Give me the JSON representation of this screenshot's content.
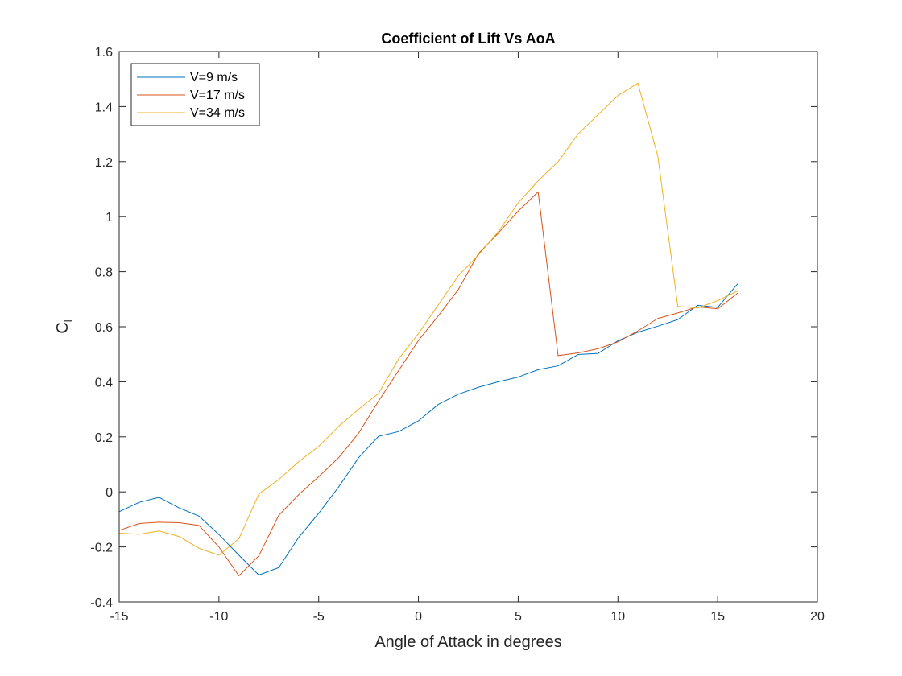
{
  "chart_data": {
    "type": "line",
    "title": "Coefficient of Lift Vs AoA",
    "xlabel": "Angle of Attack in degrees",
    "ylabel": {
      "main": "C",
      "subscript": "l"
    },
    "xlim": [
      -15,
      20
    ],
    "ylim": [
      -0.4,
      1.6
    ],
    "xticks": [
      -15,
      -10,
      -5,
      0,
      5,
      10,
      15,
      20
    ],
    "xtick_labels": [
      "-15",
      "-10",
      "-5",
      "0",
      "5",
      "10",
      "15",
      "20"
    ],
    "yticks": [
      -0.4,
      -0.2,
      0,
      0.2,
      0.4,
      0.6,
      0.8,
      1,
      1.2,
      1.4,
      1.6
    ],
    "ytick_labels": [
      "-0.4",
      "-0.2",
      "0",
      "0.2",
      "0.4",
      "0.6",
      "0.8",
      "1",
      "1.2",
      "1.4",
      "1.6"
    ],
    "grid": false,
    "legend_position": "top-left",
    "x": [
      -15,
      -14,
      -13,
      -12,
      -11,
      -10,
      -9,
      -8,
      -7,
      -6,
      -5,
      -4,
      -3,
      -2,
      -1,
      0,
      1,
      2,
      3,
      4,
      5,
      6,
      7,
      8,
      9,
      10,
      11,
      12,
      13,
      14,
      15,
      16
    ],
    "series": [
      {
        "name": "V=9 m/s",
        "color": "#0072BD",
        "values": [
          -0.072,
          -0.038,
          -0.02,
          -0.058,
          -0.088,
          -0.155,
          -0.23,
          -0.302,
          -0.275,
          -0.165,
          -0.078,
          0.018,
          0.124,
          0.202,
          0.219,
          0.258,
          0.318,
          0.355,
          0.38,
          0.4,
          0.417,
          0.444,
          0.458,
          0.499,
          0.503,
          0.549,
          0.58,
          0.602,
          0.626,
          0.678,
          0.67,
          0.756
        ]
      },
      {
        "name": "V=17 m/s",
        "color": "#D95319",
        "values": [
          -0.14,
          -0.115,
          -0.11,
          -0.112,
          -0.122,
          -0.2,
          -0.305,
          -0.232,
          -0.085,
          -0.01,
          0.055,
          0.124,
          0.213,
          0.33,
          0.44,
          0.55,
          0.64,
          0.735,
          0.865,
          0.94,
          1.02,
          1.09,
          0.495,
          0.505,
          0.52,
          0.545,
          0.585,
          0.63,
          0.65,
          0.672,
          0.665,
          0.722
        ]
      },
      {
        "name": "V=34 m/s",
        "color": "#EDB120",
        "values": [
          -0.15,
          -0.154,
          -0.142,
          -0.162,
          -0.205,
          -0.23,
          -0.17,
          -0.008,
          0.045,
          0.11,
          0.165,
          0.238,
          0.3,
          0.358,
          0.482,
          0.575,
          0.68,
          0.785,
          0.86,
          0.945,
          1.05,
          1.13,
          1.2,
          1.3,
          1.37,
          1.44,
          1.485,
          1.22,
          0.674,
          0.668,
          0.695,
          0.73
        ]
      }
    ]
  }
}
